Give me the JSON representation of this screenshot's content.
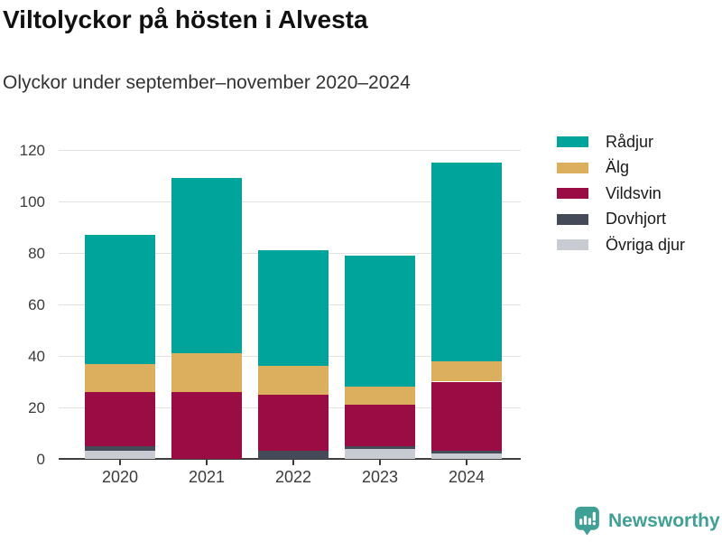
{
  "header": {
    "title": "Viltolyckor på hösten i Alvesta",
    "subtitle": "Olyckor under september–november 2020–2024"
  },
  "chart_data": {
    "type": "bar",
    "stacked": true,
    "title": "Viltolyckor på hösten i Alvesta",
    "subtitle": "Olyckor under september–november 2020–2024",
    "categories": [
      "2020",
      "2021",
      "2022",
      "2023",
      "2024"
    ],
    "series": [
      {
        "name": "Rådjur",
        "color": "#00a49b",
        "values": [
          50,
          68,
          45,
          51,
          77
        ]
      },
      {
        "name": "Älg",
        "color": "#dbaf5e",
        "values": [
          11,
          15,
          11,
          7,
          8
        ]
      },
      {
        "name": "Vildsvin",
        "color": "#9a0c43",
        "values": [
          21,
          26,
          22,
          16,
          27
        ]
      },
      {
        "name": "Dovhjort",
        "color": "#454a59",
        "values": [
          2,
          0,
          3,
          1,
          1
        ]
      },
      {
        "name": "Övriga djur",
        "color": "#c8cbd1",
        "values": [
          3,
          0,
          0,
          4,
          2
        ]
      }
    ],
    "stack_order_note": "series listed top-of-stack to bottom-of-stack (legend order)",
    "totals": [
      87,
      109,
      81,
      79,
      115
    ],
    "xlabel": "",
    "ylabel": "",
    "ylim": [
      0,
      120
    ],
    "yticks": [
      0,
      20,
      40,
      60,
      80,
      100,
      120
    ],
    "grid": "horizontal",
    "legend_position": "right"
  },
  "footer": {
    "brand": "Newsworthy"
  },
  "colors": {
    "brand_teal": "#3fa096",
    "grid": "#e2e2e2",
    "axis": "#3f3f3f",
    "axis_text": "#3b3b3b",
    "title_text": "#111111",
    "subtitle_text": "#333333"
  }
}
